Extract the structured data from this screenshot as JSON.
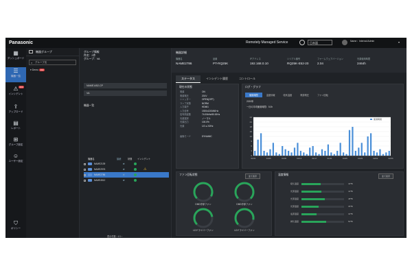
{
  "header": {
    "brand": "Panasonic",
    "service": "Remotely Managed Service",
    "language": "日本語",
    "user": "Name：Internal Admin"
  },
  "rail": [
    {
      "label": "ダッシュボード",
      "icon": "dashboard-icon",
      "glyph": "▦"
    },
    {
      "label": "機器一覧",
      "icon": "list-icon",
      "glyph": "☰"
    },
    {
      "label": "インシデント",
      "icon": "incident-icon",
      "glyph": "⚠",
      "badge": "000"
    },
    {
      "label": "アップロード",
      "icon": "upload-icon",
      "glyph": "⇪"
    },
    {
      "label": "レポート",
      "icon": "report-icon",
      "glyph": "▤"
    },
    {
      "label": "グループ設定",
      "icon": "group-icon",
      "glyph": "⊞"
    },
    {
      "label": "ユーザー設定",
      "icon": "user-icon",
      "glyph": "☺"
    },
    {
      "label": "ポリシー",
      "icon": "policy-icon",
      "glyph": "⛉"
    }
  ],
  "groups": {
    "title": "機器グループ",
    "search_placeholder": "グループ名",
    "tree_item": "Demo",
    "tree_badge": "999"
  },
  "group_info": {
    "title": "グループ情報",
    "count": "件名：2件",
    "group": "グループ：VA",
    "select1": "NAME1452-CP",
    "select2": "VA"
  },
  "device_list": {
    "title": "機器一覧",
    "headers": [
      "機器名",
      "接続",
      "状態",
      "インシデント"
    ],
    "rows": [
      {
        "name": "NAME2139",
        "status": "ok",
        "incident": ""
      },
      {
        "name": "NAME2976",
        "status": "ok",
        "incident": "warning"
      },
      {
        "name": "NAME2786",
        "status": "ok",
        "incident": "",
        "selected": true
      },
      {
        "name": "NAME4512",
        "status": "ok",
        "incident": ""
      }
    ],
    "pager": "表示件数 ‹ 1/1 ›"
  },
  "device": {
    "section": "機器詳細",
    "fields": [
      {
        "label": "機器名",
        "value": "NAME2786"
      },
      {
        "label": "品番",
        "value": "PT-RQ25K"
      },
      {
        "label": "IPアドレス",
        "value": "192.168.0.10"
      },
      {
        "label": "シリアル番号",
        "value": "RQ25K-E52-20"
      },
      {
        "label": "ファームウェアバージョン",
        "value": "2.04"
      },
      {
        "label": "光源使用時間",
        "value": "2464h"
      }
    ]
  },
  "tabs": [
    "ステータス",
    "インシデント履歴",
    "コントロール"
  ],
  "status_panel": {
    "title": "現在の状態",
    "rows": [
      {
        "k": "電源",
        "v": "ON"
      },
      {
        "k": "電源電圧",
        "v": "201V"
      },
      {
        "k": "シャッター",
        "v": "OPEN(OFF)"
      },
      {
        "k": "ランプ状態",
        "v": "NORM"
      },
      {
        "k": "入力端子",
        "v": "HDMI1"
      },
      {
        "k": "入力信号",
        "v": "1920x1200/60Hz"
      },
      {
        "k": "信号周波数",
        "v": "74.00kHz/60.00Hz"
      },
      {
        "k": "光源選択",
        "v": "ノーマル"
      },
      {
        "k": "光源出力",
        "v": "100.0%"
      },
      {
        "k": "光源",
        "v": "1/2 ● 2/2Hz"
      },
      {
        "k": "画像モード",
        "v": "DYNAMIC"
      }
    ]
  },
  "log_panel": {
    "title": "ログ・グラフ",
    "tabs": [
      "使用時間",
      "温度情報",
      "吸気温度",
      "電源電圧",
      "ファン回転"
    ],
    "range": "2020年",
    "chart_title": "一日の平均使用時間：5.0h",
    "legend": "使用時間"
  },
  "chart_data": {
    "type": "bar",
    "ylim": [
      0,
      24
    ],
    "yticks": [
      "0",
      "3",
      "6",
      "9",
      "12",
      "15",
      "18",
      "21",
      "24"
    ],
    "xticks": [
      "01/01",
      "01/05",
      "01/09",
      "01/13",
      "01/17",
      "01/21",
      "01/25",
      "01/29",
      "02/02",
      "02/06"
    ],
    "values": [
      3,
      10,
      14,
      3,
      2,
      4,
      8,
      2,
      1,
      6,
      4,
      3,
      2,
      5,
      8,
      3,
      2,
      1,
      5,
      6,
      2,
      1,
      4,
      3,
      7,
      2,
      1,
      3,
      8,
      2,
      1,
      16,
      18,
      3,
      5,
      8,
      2,
      12,
      14,
      3,
      2,
      4,
      1,
      2,
      3
    ],
    "legend": "使用時間",
    "legend_position": "top-right"
  },
  "fan_panel": {
    "title": "ファン回転状態",
    "button": "全て表示",
    "gauges": [
      {
        "label": "DMD冷却ファン",
        "level": 0.7
      },
      {
        "label": "DMD冷却ファン",
        "level": 0.75
      },
      {
        "label": "LDドライバーファン",
        "level": 0.6
      },
      {
        "label": "LDドライバーファン",
        "level": 0.65
      }
    ]
  },
  "temp_panel": {
    "title": "温度情報",
    "button": "全て表示",
    "rows": [
      {
        "name": "吸気温度",
        "value": "40℃",
        "level": 0.45
      },
      {
        "name": "光源温度",
        "value": "41℃",
        "level": 0.47
      },
      {
        "name": "光源温度",
        "value": "48℃",
        "level": 0.55
      },
      {
        "name": "光源温度",
        "value": "35℃",
        "level": 0.4
      },
      {
        "name": "電源温度",
        "value": "32℃",
        "level": 0.36
      },
      {
        "name": "排気温度",
        "value": "50℃",
        "level": 0.58
      }
    ]
  }
}
